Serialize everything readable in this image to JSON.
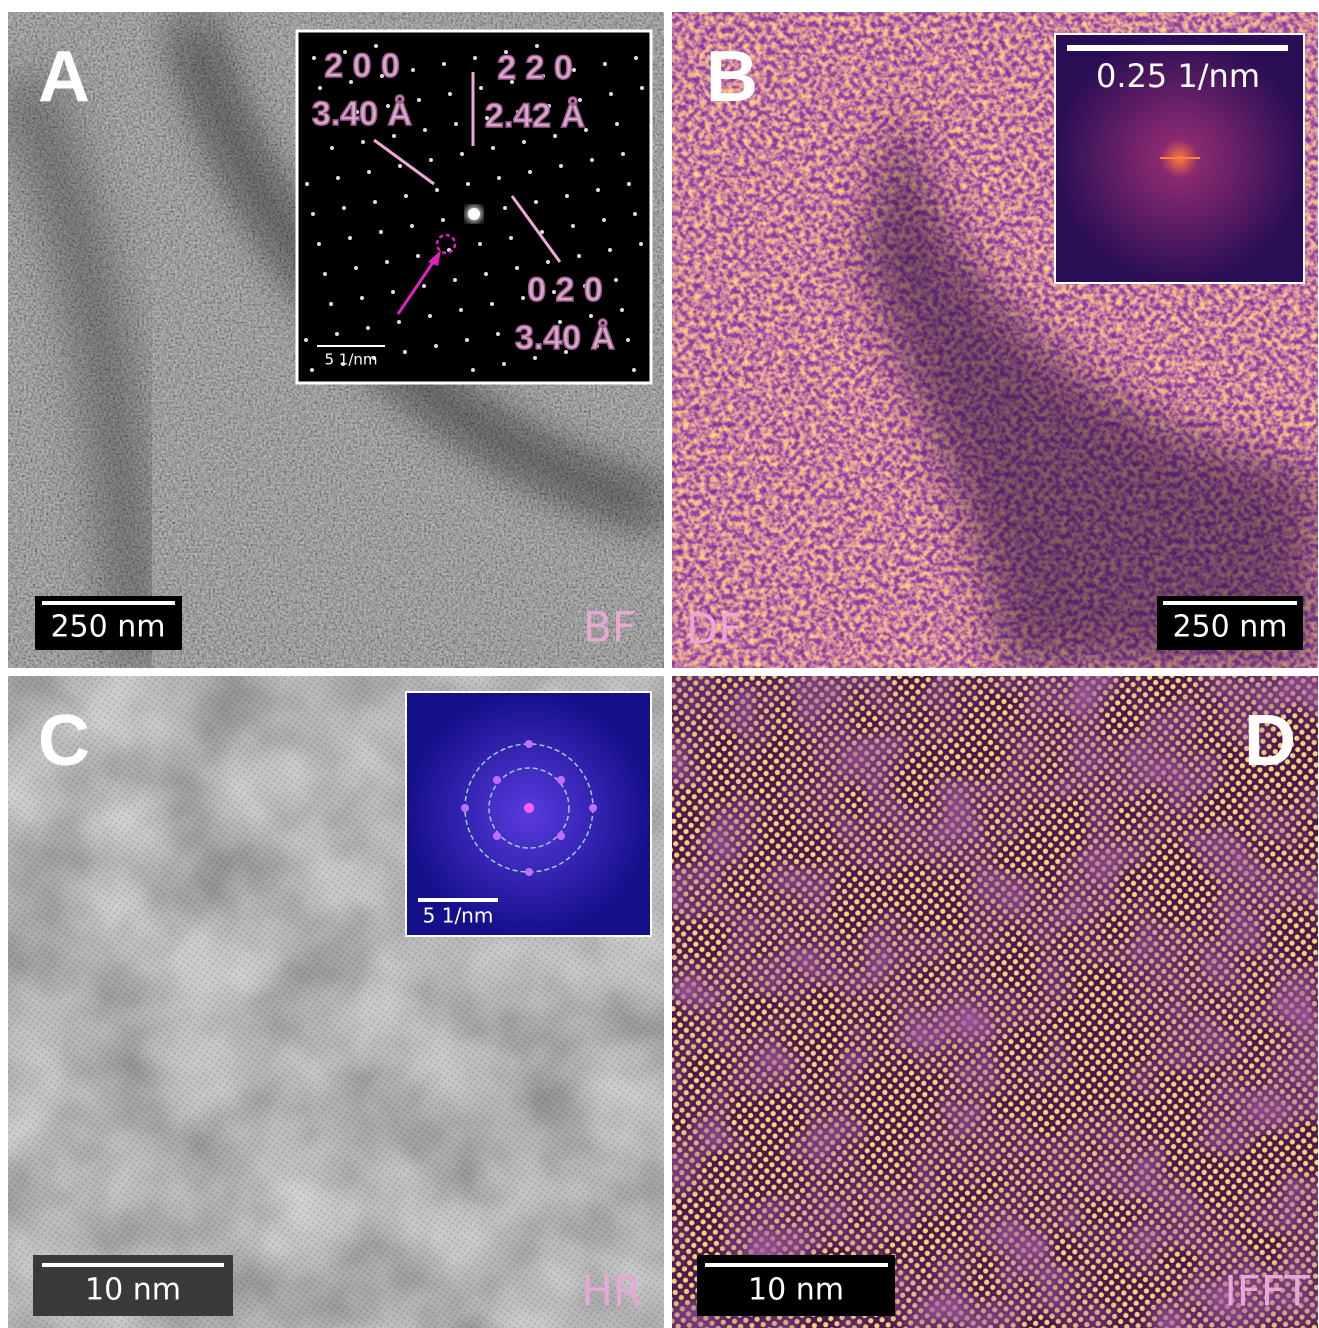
{
  "panels": [
    {
      "letter": "A",
      "mode": "BF",
      "scale_bar": "250 nm",
      "inset": {
        "labels": [
          "2 0 0",
          "3.40 Å",
          "2 2 0",
          "2.42 Å",
          "0 2 0",
          "3.40 Å"
        ],
        "scale_bar": "5 1/nm"
      }
    },
    {
      "letter": "B",
      "mode": "DF",
      "scale_bar": "250 nm",
      "inset": {
        "scale_bar": "0.25 1/nm"
      }
    },
    {
      "letter": "C",
      "mode": "HR",
      "scale_bar": "10 nm",
      "inset": {
        "scale_bar": "5 1/nm"
      }
    },
    {
      "letter": "D",
      "mode": "IFFT",
      "scale_bar": "10 nm"
    }
  ]
}
